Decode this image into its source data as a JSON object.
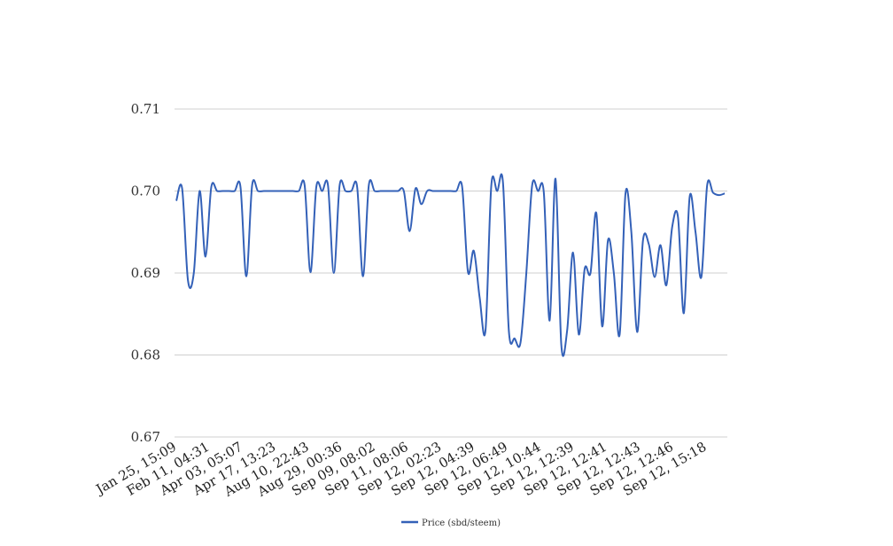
{
  "chart_data": {
    "type": "line",
    "title": "",
    "xlabel": "",
    "ylabel": "",
    "ylim": [
      0.67,
      0.71
    ],
    "yticks": [
      "0.67",
      "0.68",
      "0.69",
      "0.70",
      "0.71"
    ],
    "ytick_values": [
      0.67,
      0.68,
      0.69,
      0.7,
      0.71
    ],
    "x_tick_labels": [
      "Jan 25, 15:09",
      "Feb 11, 04:31",
      "Apr 03, 05:07",
      "Apr 17, 13:23",
      "Aug 10, 22:43",
      "Aug 29, 00:36",
      "Sep 09, 08:02",
      "Sep 11, 08:06",
      "Sep 12, 02:23",
      "Sep 12, 04:39",
      "Sep 12, 06:49",
      "Sep 12, 10:44",
      "Sep 12, 12:39",
      "Sep 12, 12:41",
      "Sep 12, 12:43",
      "Sep 12, 12:46",
      "Sep 12, 15:18"
    ],
    "grid": true,
    "legend_position": "bottom-center",
    "line_color": "#3461b8",
    "series": [
      {
        "name": "Price (sbd/steem)",
        "values": [
          0.6988,
          0.7003,
          0.6891,
          0.69,
          0.7,
          0.692,
          0.7005,
          0.7,
          0.7,
          0.7,
          0.7,
          0.7005,
          0.6896,
          0.7007,
          0.7,
          0.7,
          0.7,
          0.7,
          0.7,
          0.7,
          0.7,
          0.7,
          0.7007,
          0.6901,
          0.7005,
          0.7,
          0.7007,
          0.69,
          0.7007,
          0.7,
          0.7,
          0.7005,
          0.6896,
          0.7007,
          0.7,
          0.7,
          0.7,
          0.7,
          0.7,
          0.7,
          0.6951,
          0.7003,
          0.6984,
          0.7,
          0.7,
          0.7,
          0.7,
          0.7,
          0.7,
          0.7005,
          0.6901,
          0.6927,
          0.687,
          0.683,
          0.7007,
          0.7,
          0.701,
          0.683,
          0.682,
          0.6815,
          0.69,
          0.7007,
          0.7,
          0.6998,
          0.6842,
          0.7015,
          0.6812,
          0.683,
          0.6925,
          0.6825,
          0.6905,
          0.69,
          0.6973,
          0.6835,
          0.694,
          0.69,
          0.6825,
          0.6997,
          0.695,
          0.6828,
          0.694,
          0.6935,
          0.6895,
          0.6934,
          0.6885,
          0.6956,
          0.6968,
          0.6851,
          0.6993,
          0.695,
          0.6895,
          0.7007,
          0.6998,
          0.6995,
          0.6997
        ]
      }
    ]
  }
}
